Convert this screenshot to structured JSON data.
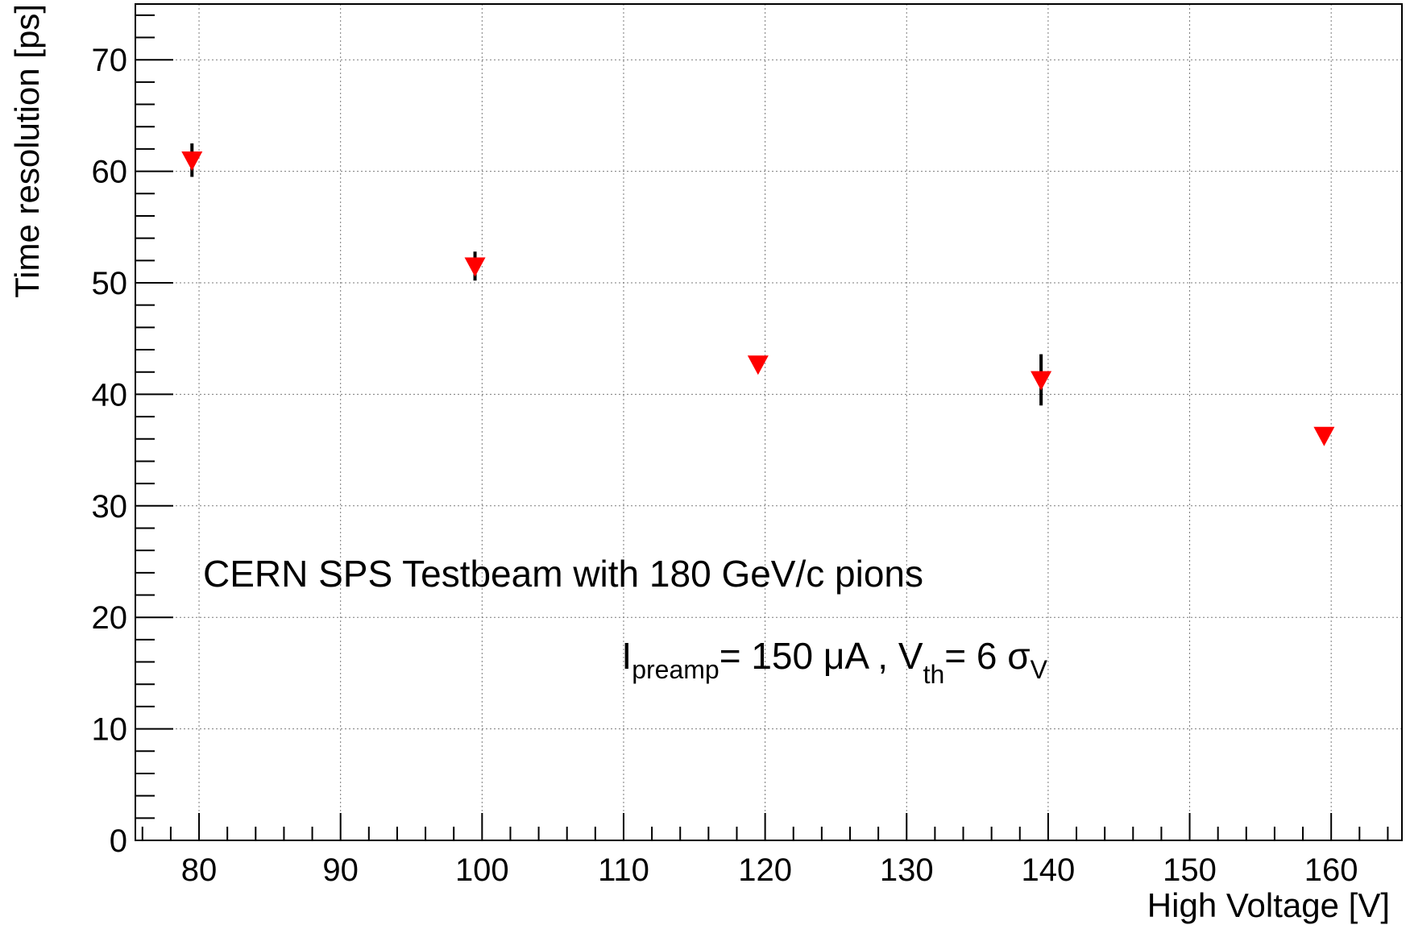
{
  "chart_data": {
    "type": "scatter",
    "title": "",
    "xlabel": "High Voltage [V]",
    "ylabel": "Time resolution [ps]",
    "xlim": [
      75.5,
      165
    ],
    "ylim": [
      0,
      75
    ],
    "x_ticks": [
      80,
      90,
      100,
      110,
      120,
      130,
      140,
      150,
      160
    ],
    "x_tick_labels": [
      "80",
      "90",
      "100",
      "110",
      "120",
      "130",
      "140",
      "150",
      "160"
    ],
    "y_ticks": [
      0,
      10,
      20,
      30,
      40,
      50,
      60,
      70
    ],
    "y_tick_labels": [
      "0",
      "10",
      "20",
      "30",
      "40",
      "50",
      "60",
      "70"
    ],
    "grid": true,
    "legend": "none",
    "series": [
      {
        "marker": "triangle-down",
        "color": "#ff0000",
        "error_bar_color": "#000000",
        "points": [
          {
            "x": 79.5,
            "y": 61.0,
            "err": 1.5
          },
          {
            "x": 99.5,
            "y": 51.5,
            "err": 1.3
          },
          {
            "x": 119.5,
            "y": 42.7,
            "err": 0.0
          },
          {
            "x": 139.5,
            "y": 41.3,
            "err": 2.3
          },
          {
            "x": 159.5,
            "y": 36.3,
            "err": 0.0
          }
        ]
      }
    ],
    "annotations": {
      "line1": "CERN SPS Testbeam with 180 GeV/c pions",
      "line2": {
        "i_symbol": "I",
        "i_sub": "preamp",
        "i_value": "= 150 μA , ",
        "v_symbol": "V",
        "v_sub": "th",
        "v_value": "= 6 σ",
        "v_sigma_sub": "V"
      }
    }
  }
}
